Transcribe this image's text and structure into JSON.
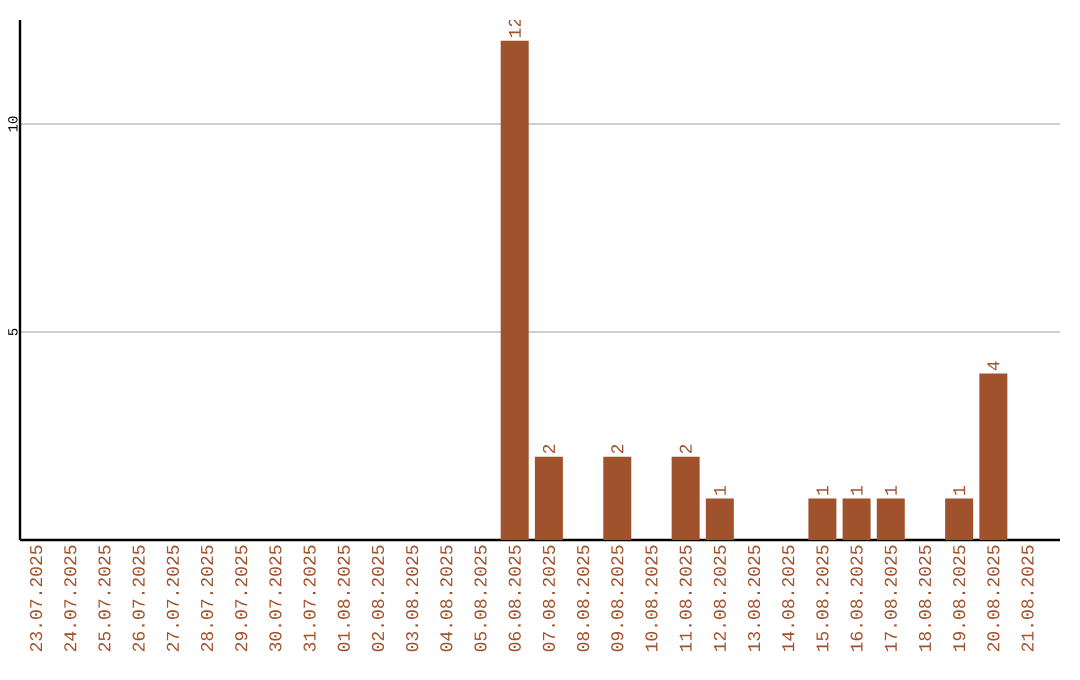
{
  "chart_data": {
    "type": "bar",
    "categories": [
      "23.07.2025",
      "24.07.2025",
      "25.07.2025",
      "26.07.2025",
      "27.07.2025",
      "28.07.2025",
      "29.07.2025",
      "30.07.2025",
      "31.07.2025",
      "01.08.2025",
      "02.08.2025",
      "03.08.2025",
      "04.08.2025",
      "05.08.2025",
      "06.08.2025",
      "07.08.2025",
      "08.08.2025",
      "09.08.2025",
      "10.08.2025",
      "11.08.2025",
      "12.08.2025",
      "13.08.2025",
      "14.08.2025",
      "15.08.2025",
      "16.08.2025",
      "17.08.2025",
      "18.08.2025",
      "19.08.2025",
      "20.08.2025",
      "21.08.2025"
    ],
    "values": [
      0,
      0,
      0,
      0,
      0,
      0,
      0,
      0,
      0,
      0,
      0,
      0,
      0,
      0,
      12,
      2,
      0,
      2,
      0,
      2,
      1,
      0,
      0,
      1,
      1,
      1,
      0,
      1,
      4,
      0
    ],
    "value_labels": [
      null,
      null,
      null,
      null,
      null,
      null,
      null,
      null,
      null,
      null,
      null,
      null,
      null,
      null,
      "12",
      "2",
      null,
      "2",
      null,
      "2",
      "1",
      null,
      null,
      "1",
      "1",
      "1",
      null,
      "1",
      "4",
      null
    ],
    "color": "#a0522d",
    "ylim": [
      0,
      12.5
    ],
    "yticks": [
      5,
      10
    ],
    "grid": "y"
  }
}
